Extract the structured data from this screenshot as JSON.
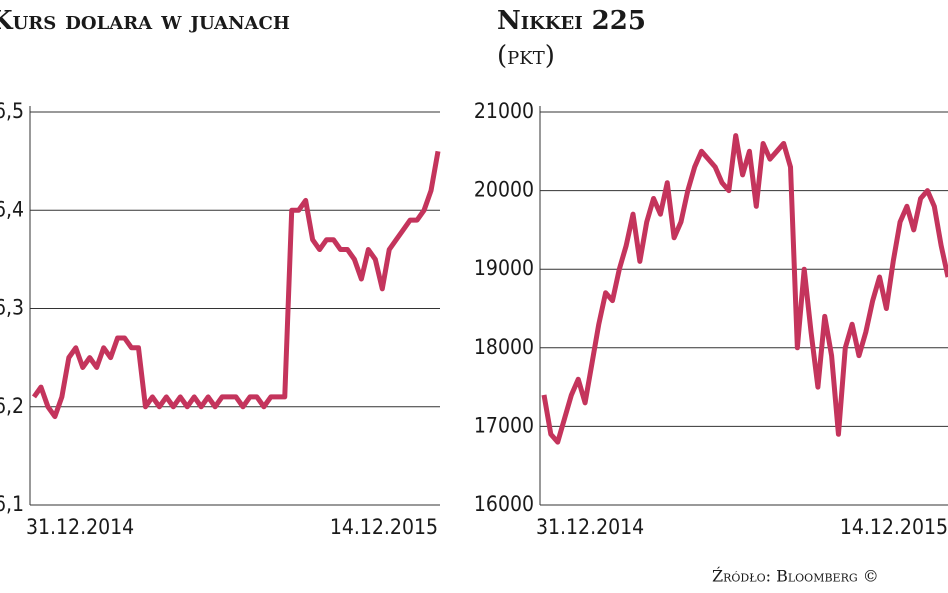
{
  "chart_data": [
    {
      "type": "line",
      "title": "Kurs dolara w juanach",
      "categories": [
        "31.12.2014",
        null,
        null,
        null,
        null,
        null,
        null,
        null,
        null,
        null,
        null,
        null,
        null,
        null,
        null,
        null,
        null,
        null,
        null,
        null,
        null,
        null,
        null,
        null,
        null,
        null,
        null,
        null,
        null,
        null,
        null,
        null,
        null,
        null,
        null,
        null,
        null,
        null,
        null,
        null,
        null,
        null,
        null,
        null,
        null,
        null,
        null,
        null,
        null,
        null,
        null,
        null,
        null,
        null,
        null,
        null,
        null,
        null,
        "14.12.2015"
      ],
      "series": [
        {
          "color": "#c4345c",
          "values": [
            6.21,
            6.22,
            6.2,
            6.19,
            6.21,
            6.25,
            6.26,
            6.24,
            6.25,
            6.24,
            6.26,
            6.25,
            6.27,
            6.27,
            6.26,
            6.26,
            6.2,
            6.21,
            6.2,
            6.21,
            6.2,
            6.21,
            6.2,
            6.21,
            6.2,
            6.21,
            6.2,
            6.21,
            6.21,
            6.21,
            6.2,
            6.21,
            6.21,
            6.2,
            6.21,
            6.21,
            6.21,
            6.4,
            6.4,
            6.41,
            6.37,
            6.36,
            6.37,
            6.37,
            6.36,
            6.36,
            6.35,
            6.33,
            6.36,
            6.35,
            6.32,
            6.36,
            6.37,
            6.38,
            6.39,
            6.39,
            6.4,
            6.42,
            6.46
          ]
        }
      ],
      "ylim": [
        6.1,
        6.5
      ],
      "yticks": [
        {
          "value": 6.1,
          "label": "6,1"
        },
        {
          "value": 6.2,
          "label": "6,2"
        },
        {
          "value": 6.3,
          "label": "6,3"
        },
        {
          "value": 6.4,
          "label": "6,4"
        },
        {
          "value": 6.5,
          "label": "6,5"
        }
      ],
      "grid": true
    },
    {
      "type": "line",
      "title": "Nikkei 225",
      "subtitle": "(pkt)",
      "categories": [
        "31.12.2014",
        null,
        null,
        null,
        null,
        null,
        null,
        null,
        null,
        null,
        null,
        null,
        null,
        null,
        null,
        null,
        null,
        null,
        null,
        null,
        null,
        null,
        null,
        null,
        null,
        null,
        null,
        null,
        null,
        null,
        null,
        null,
        null,
        null,
        null,
        null,
        null,
        null,
        null,
        null,
        null,
        null,
        null,
        null,
        null,
        null,
        null,
        null,
        null,
        null,
        null,
        null,
        null,
        null,
        null,
        null,
        null,
        null,
        null,
        "14.12.2015"
      ],
      "series": [
        {
          "color": "#c4345c",
          "values": [
            17400,
            16900,
            16800,
            17100,
            17400,
            17600,
            17300,
            17800,
            18300,
            18700,
            18600,
            19000,
            19300,
            19700,
            19100,
            19600,
            19900,
            19700,
            20100,
            19400,
            19600,
            20000,
            20300,
            20500,
            20400,
            20300,
            20100,
            20000,
            20700,
            20200,
            20500,
            19800,
            20600,
            20400,
            20500,
            20600,
            20300,
            18000,
            19000,
            18200,
            17500,
            18400,
            17900,
            16900,
            18000,
            18300,
            17900,
            18200,
            18600,
            18900,
            18500,
            19100,
            19600,
            19800,
            19500,
            19900,
            20000,
            19800,
            19300,
            18900
          ]
        }
      ],
      "ylim": [
        16000,
        21000
      ],
      "yticks": [
        16000,
        17000,
        18000,
        19000,
        20000,
        21000
      ],
      "grid": true
    }
  ],
  "source": "Źródło: Bloomberg ©"
}
